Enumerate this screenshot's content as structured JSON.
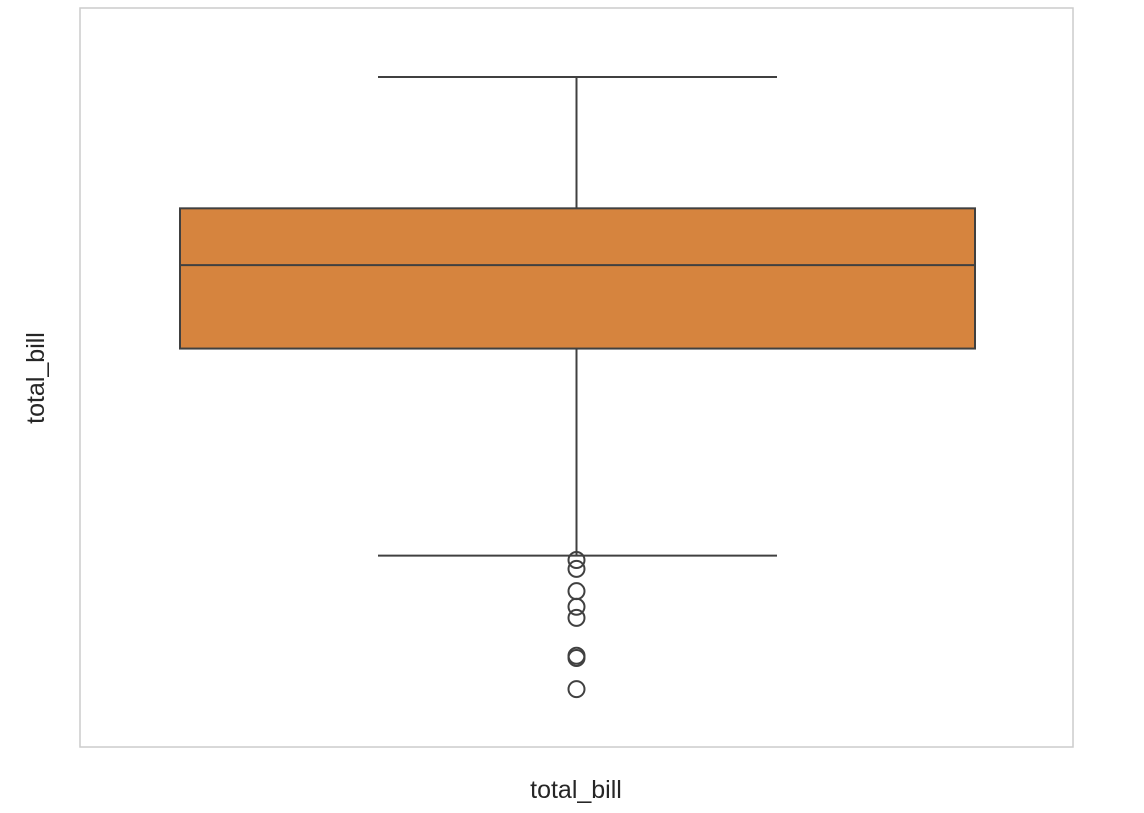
{
  "chart_data": {
    "type": "box",
    "xlabel": "total_bill",
    "ylabel": "total_bill",
    "orientation": "vertical",
    "ylim": [
      -2.0,
      31.2
    ],
    "grid": false,
    "box": {
      "whisker_high": 28.1,
      "q3": 22.2,
      "median": 19.65,
      "q1": 15.9,
      "whisker_low": 6.6,
      "outliers": [
        6.4,
        6.0,
        5.0,
        4.3,
        3.8,
        2.1,
        2.0,
        0.6
      ],
      "color": "#d6843e"
    },
    "colors": {
      "box_fill": "#d6843e",
      "line": "#404040",
      "frame": "#cccccc"
    }
  }
}
